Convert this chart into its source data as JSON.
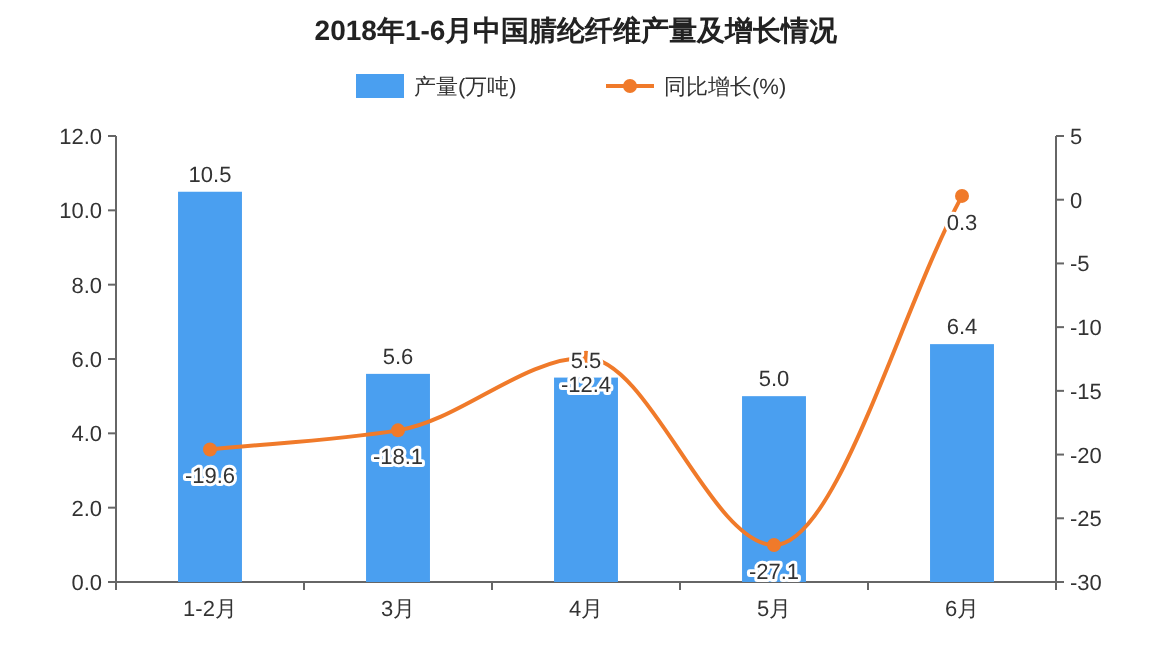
{
  "chart_data": {
    "type": "bar",
    "title": "2018年1-6月中国腈纶纤维产量及增长情况",
    "categories": [
      "1-2月",
      "3月",
      "4月",
      "5月",
      "6月"
    ],
    "series": [
      {
        "name": "产量(万吨)",
        "color": "#4a9ff0",
        "values": [
          10.5,
          5.6,
          5.5,
          5.0,
          6.4
        ],
        "value_labels": [
          "10.5",
          "5.6",
          "5.5",
          "5.0",
          "6.4"
        ]
      },
      {
        "name": "同比增长(%)",
        "type": "line",
        "axis": "y2",
        "color": "#f07a2a",
        "marker": "circle",
        "values": [
          -19.6,
          -18.1,
          -12.4,
          -27.1,
          0.3
        ]
      }
    ],
    "ylim": [
      0,
      12
    ],
    "yticks": [
      {
        "value": 0,
        "label": "0.0"
      },
      {
        "value": 2,
        "label": "2.0"
      },
      {
        "value": 4,
        "label": "4.0"
      },
      {
        "value": 6,
        "label": "6.0"
      },
      {
        "value": 8,
        "label": "8.0"
      },
      {
        "value": 10,
        "label": "10.0"
      },
      {
        "value": 12,
        "label": "12.0"
      }
    ],
    "y2lim": [
      -30,
      5
    ],
    "y2ticks": [
      -30,
      -25,
      -20,
      -15,
      -10,
      -5,
      0,
      5
    ],
    "legend": "top",
    "data_labels": true
  }
}
